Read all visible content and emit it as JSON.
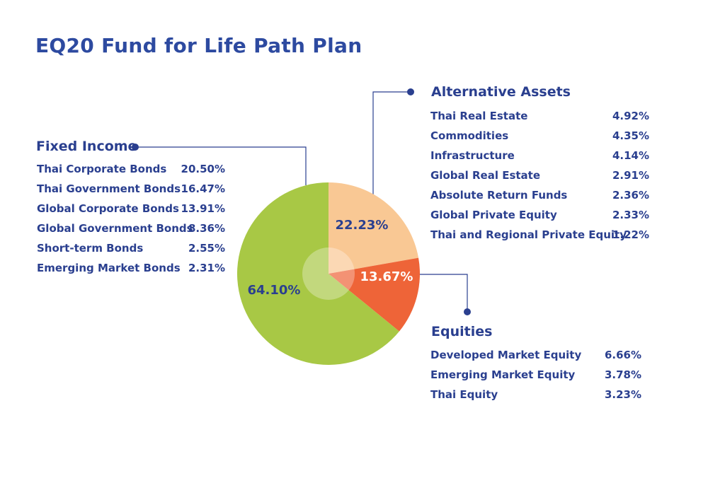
{
  "title": "EQ20 Fund for Life Path Plan",
  "colors": {
    "fixed_income": "#a8c845",
    "alternative_assets": "#f9c894",
    "equities": "#ee6438",
    "text": "#2a3f8f",
    "connector": "#2a3f8f"
  },
  "chart_data": {
    "type": "pie",
    "slices": [
      {
        "label": "22.23%",
        "value": 22.23,
        "color": "#f9c894"
      },
      {
        "label": "13.67%",
        "value": 13.67,
        "color": "#ee6438"
      },
      {
        "label": "64.10%",
        "value": 64.1,
        "color": "#a8c845"
      }
    ]
  },
  "fixed_income": {
    "title": "Fixed Income",
    "items": [
      {
        "label": "Thai Corporate Bonds",
        "value": "20.50%"
      },
      {
        "label": "Thai Government Bonds",
        "value": "16.47%"
      },
      {
        "label": "Global Corporate Bonds",
        "value": "13.91%"
      },
      {
        "label": "Global Government Bonds",
        "value": "8.36%"
      },
      {
        "label": "Short-term Bonds",
        "value": "2.55%"
      },
      {
        "label": "Emerging Market Bonds",
        "value": "2.31%"
      }
    ]
  },
  "alternative_assets": {
    "title": "Alternative Assets",
    "items": [
      {
        "label": "Thai Real Estate",
        "value": "4.92%"
      },
      {
        "label": "Commodities",
        "value": "4.35%"
      },
      {
        "label": "Infrastructure",
        "value": "4.14%"
      },
      {
        "label": "Global Real Estate",
        "value": "2.91%"
      },
      {
        "label": "Absolute Return Funds",
        "value": "2.36%"
      },
      {
        "label": "Global Private Equity",
        "value": "2.33%"
      },
      {
        "label": "Thai and Regional Private Equity",
        "value": "1.22%"
      }
    ]
  },
  "equities": {
    "title": "Equities",
    "items": [
      {
        "label": "Developed Market Equity",
        "value": "6.66%"
      },
      {
        "label": "Emerging Market Equity",
        "value": "3.78%"
      },
      {
        "label": "Thai Equity",
        "value": "3.23%"
      }
    ]
  }
}
